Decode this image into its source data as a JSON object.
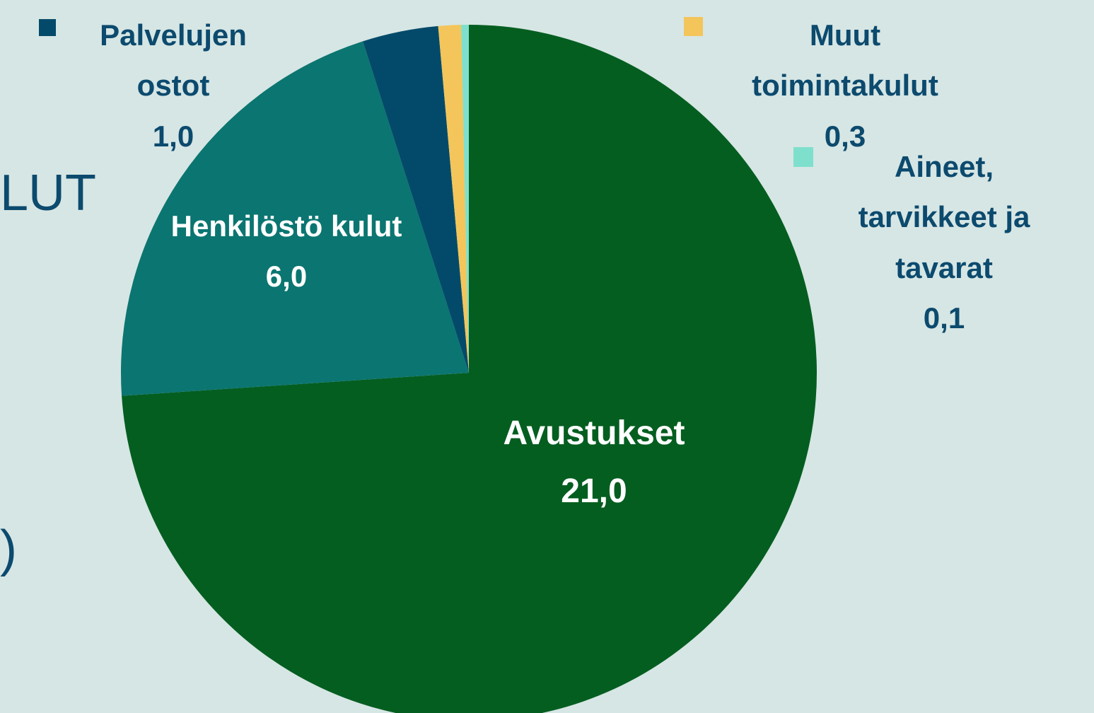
{
  "chart_data": {
    "type": "pie",
    "categories": [
      "Avustukset",
      "Henkilöstö kulut",
      "Palvelujen ostot",
      "Muut toimintakulut",
      "Aineet, tarvikkeet ja tavarat"
    ],
    "values": [
      21.0,
      6.0,
      1.0,
      0.3,
      0.1
    ],
    "value_labels": [
      "21,0",
      "6,0",
      "1,0",
      "0,3",
      "0,1"
    ],
    "colors": [
      "#045e20",
      "#0b7571",
      "#034a6a",
      "#f3c55a",
      "#7ee0cc"
    ],
    "side_text": [
      "LUT",
      ")"
    ]
  }
}
